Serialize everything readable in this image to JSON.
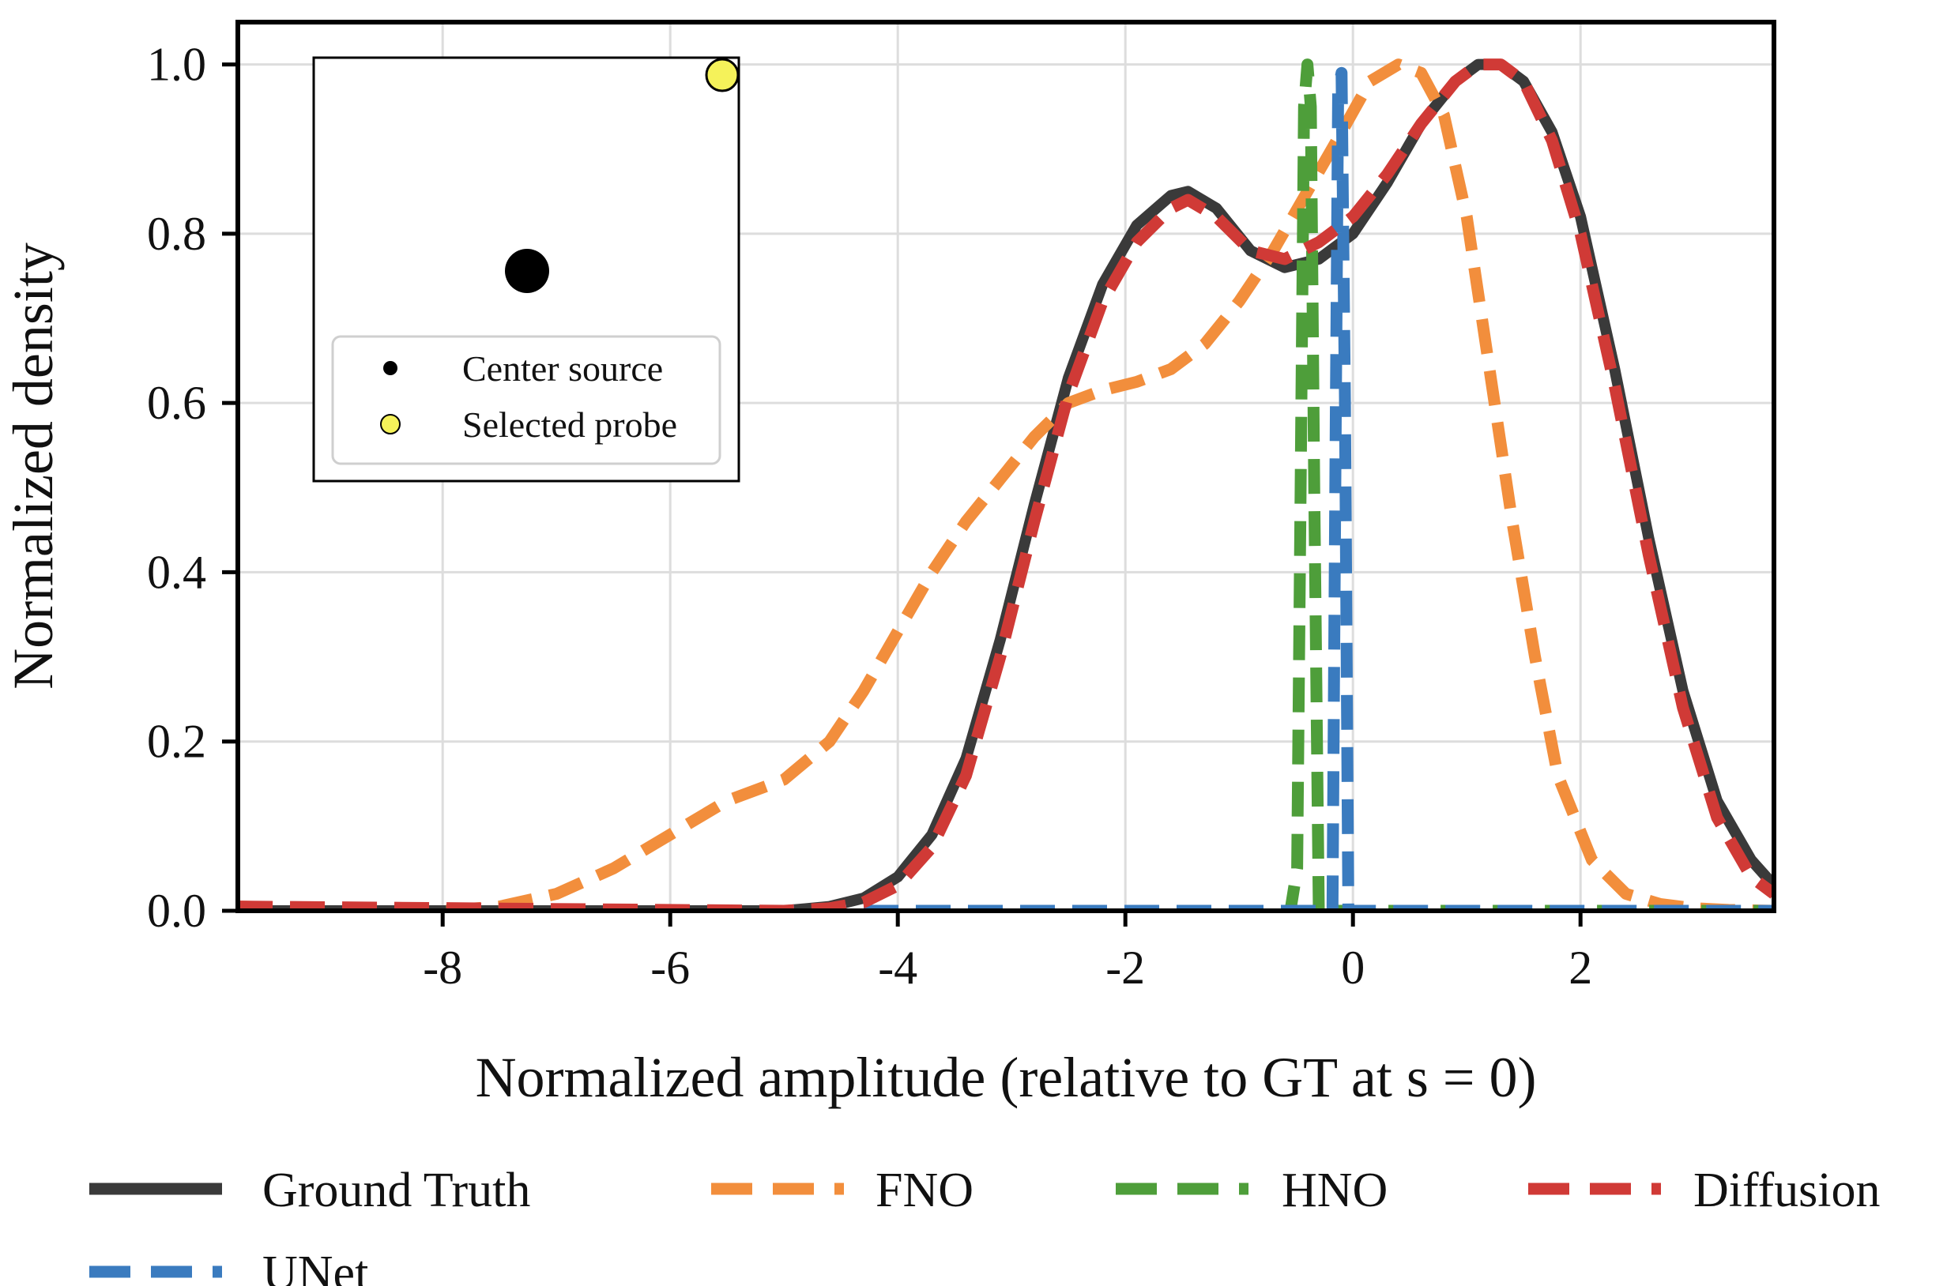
{
  "chart_data": {
    "type": "line",
    "title": "",
    "xlabel": "Normalized amplitude (relative to GT at s = 0)",
    "ylabel": "Normalized density",
    "xlim": [
      -9.8,
      3.7
    ],
    "ylim": [
      0.0,
      1.05
    ],
    "x_ticks": [
      -8,
      -6,
      -4,
      -2,
      0,
      2
    ],
    "y_ticks": [
      0.0,
      0.2,
      0.4,
      0.6,
      0.8,
      1.0
    ],
    "x_tick_labels": [
      "-8",
      "-6",
      "-4",
      "-2",
      "0",
      "2"
    ],
    "y_tick_labels": [
      "0.0",
      "0.2",
      "0.4",
      "0.6",
      "0.8",
      "1.0"
    ],
    "grid": true,
    "legend_position": "bottom",
    "series": [
      {
        "name": "Ground Truth",
        "color": "#3a3a3a",
        "style": "solid",
        "x": [
          -9.8,
          -5.0,
          -4.6,
          -4.3,
          -4.0,
          -3.7,
          -3.4,
          -3.1,
          -2.8,
          -2.5,
          -2.2,
          -1.9,
          -1.6,
          -1.45,
          -1.2,
          -0.9,
          -0.6,
          -0.3,
          0.0,
          0.3,
          0.6,
          0.9,
          1.1,
          1.3,
          1.5,
          1.75,
          2.0,
          2.3,
          2.6,
          2.9,
          3.2,
          3.5,
          3.7
        ],
        "y": [
          0.0,
          0.0,
          0.005,
          0.015,
          0.04,
          0.09,
          0.18,
          0.32,
          0.48,
          0.63,
          0.74,
          0.81,
          0.845,
          0.85,
          0.83,
          0.78,
          0.76,
          0.77,
          0.8,
          0.86,
          0.93,
          0.98,
          1.0,
          1.0,
          0.98,
          0.92,
          0.82,
          0.64,
          0.44,
          0.26,
          0.13,
          0.06,
          0.03
        ]
      },
      {
        "name": "FNO",
        "color": "#f28e3c",
        "style": "dashed",
        "x": [
          -9.8,
          -8.0,
          -7.5,
          -7.0,
          -6.5,
          -6.0,
          -5.5,
          -5.0,
          -4.6,
          -4.3,
          -4.0,
          -3.7,
          -3.4,
          -3.1,
          -2.8,
          -2.5,
          -2.2,
          -1.9,
          -1.6,
          -1.3,
          -1.0,
          -0.7,
          -0.4,
          -0.1,
          0.15,
          0.4,
          0.6,
          0.8,
          1.0,
          1.2,
          1.4,
          1.6,
          1.8,
          2.1,
          2.4,
          2.7,
          3.0,
          3.3,
          3.7
        ],
        "y": [
          0.005,
          0.0,
          0.005,
          0.02,
          0.05,
          0.09,
          0.13,
          0.155,
          0.2,
          0.26,
          0.33,
          0.4,
          0.46,
          0.51,
          0.56,
          0.6,
          0.615,
          0.625,
          0.64,
          0.67,
          0.72,
          0.78,
          0.85,
          0.92,
          0.98,
          1.0,
          0.99,
          0.94,
          0.82,
          0.64,
          0.46,
          0.3,
          0.16,
          0.06,
          0.02,
          0.008,
          0.003,
          0.001,
          0.0
        ]
      },
      {
        "name": "HNO",
        "color": "#4e9e3a",
        "style": "dashed",
        "x": [
          -9.8,
          -0.55,
          -0.49,
          -0.46,
          -0.43,
          -0.4,
          -0.37,
          -0.34,
          -0.3,
          3.7
        ],
        "y": [
          0.0,
          0.0,
          0.05,
          0.5,
          0.95,
          1.0,
          0.95,
          0.5,
          0.0,
          0.0
        ]
      },
      {
        "name": "Diffusion",
        "color": "#d03a36",
        "style": "dashed",
        "x": [
          -9.8,
          -5.0,
          -4.6,
          -4.3,
          -4.0,
          -3.7,
          -3.4,
          -3.1,
          -2.8,
          -2.5,
          -2.2,
          -1.9,
          -1.6,
          -1.45,
          -1.2,
          -0.9,
          -0.6,
          -0.3,
          0.0,
          0.3,
          0.6,
          0.9,
          1.1,
          1.3,
          1.5,
          1.75,
          2.0,
          2.3,
          2.6,
          2.9,
          3.2,
          3.5,
          3.7
        ],
        "y": [
          0.005,
          0.0,
          0.003,
          0.01,
          0.03,
          0.075,
          0.16,
          0.3,
          0.46,
          0.61,
          0.72,
          0.79,
          0.83,
          0.84,
          0.82,
          0.78,
          0.77,
          0.79,
          0.82,
          0.87,
          0.93,
          0.98,
          1.0,
          1.0,
          0.98,
          0.91,
          0.8,
          0.62,
          0.42,
          0.24,
          0.11,
          0.04,
          0.02
        ]
      },
      {
        "name": "UNet",
        "color": "#3a7bbf",
        "style": "dashed",
        "x": [
          -9.8,
          -0.18,
          -0.15,
          -0.13,
          -0.1,
          -0.07,
          -0.04,
          3.7
        ],
        "y": [
          0.0,
          0.0,
          0.6,
          0.97,
          0.99,
          0.6,
          0.0,
          0.0
        ]
      }
    ],
    "inset": {
      "markers": [
        {
          "name": "Center source",
          "color": "#000000"
        },
        {
          "name": "Selected probe",
          "color": "#f5f25a"
        }
      ]
    }
  }
}
